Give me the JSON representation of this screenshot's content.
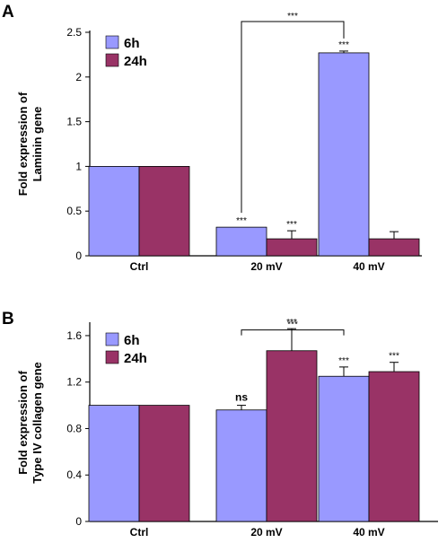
{
  "colors": {
    "h6": "#9999ff",
    "h24": "#993366",
    "axis": "#000000",
    "bar_stroke": "#000000"
  },
  "chart_data": [
    {
      "panel": "A",
      "type": "bar",
      "ylabel_lines": [
        "Fold expression of",
        "Laminin gene"
      ],
      "categories": [
        "Ctrl",
        "20 mV",
        "40 mV"
      ],
      "ylim": [
        0,
        2.5
      ],
      "yticks": [
        0,
        0.5,
        1,
        1.5,
        2,
        2.5
      ],
      "ytick_labels": [
        "0",
        "0.5",
        "1",
        "1.5",
        "2",
        "2.5"
      ],
      "grid": false,
      "legend_position": "top-left",
      "series": [
        {
          "name": "6h",
          "color": "#9999ff",
          "values": [
            1.0,
            0.32,
            2.27
          ],
          "errors": [
            0,
            0,
            0.02
          ]
        },
        {
          "name": "24h",
          "color": "#993366",
          "values": [
            1.0,
            0.19,
            0.19
          ],
          "errors": [
            0,
            0.09,
            0.08
          ]
        }
      ],
      "annotations": [
        {
          "category": 1,
          "series": 0,
          "text": "***"
        },
        {
          "category": 1,
          "series": 1,
          "text": "***"
        },
        {
          "category": 2,
          "series": 0,
          "text": "***"
        }
      ],
      "bracket": {
        "from": [
          1,
          0
        ],
        "to": [
          2,
          0
        ],
        "text": "***"
      }
    },
    {
      "panel": "B",
      "type": "bar",
      "ylabel_lines": [
        "Fold expression of",
        "Type IV collagen gene"
      ],
      "categories": [
        "Ctrl",
        "20 mV",
        "40 mV"
      ],
      "ylim": [
        0,
        1.7
      ],
      "yticks": [
        0,
        0.4,
        0.8,
        1.2,
        1.6
      ],
      "ytick_labels": [
        "0",
        "0.4",
        "0.8",
        "1.2",
        "1.6"
      ],
      "grid": false,
      "legend_position": "top-left",
      "series": [
        {
          "name": "6h",
          "color": "#9999ff",
          "values": [
            1.0,
            0.96,
            1.25
          ],
          "errors": [
            0,
            0.04,
            0.08
          ]
        },
        {
          "name": "24h",
          "color": "#993366",
          "values": [
            1.0,
            1.47,
            1.29
          ],
          "errors": [
            0,
            0.19,
            0.08
          ]
        }
      ],
      "annotations": [
        {
          "category": 1,
          "series": 0,
          "text": "ns"
        },
        {
          "category": 1,
          "series": 1,
          "text": "***"
        },
        {
          "category": 2,
          "series": 0,
          "text": "***"
        },
        {
          "category": 2,
          "series": 1,
          "text": "***"
        }
      ],
      "bracket": {
        "from": [
          1,
          0
        ],
        "to": [
          2,
          0
        ],
        "text": "***"
      }
    }
  ]
}
